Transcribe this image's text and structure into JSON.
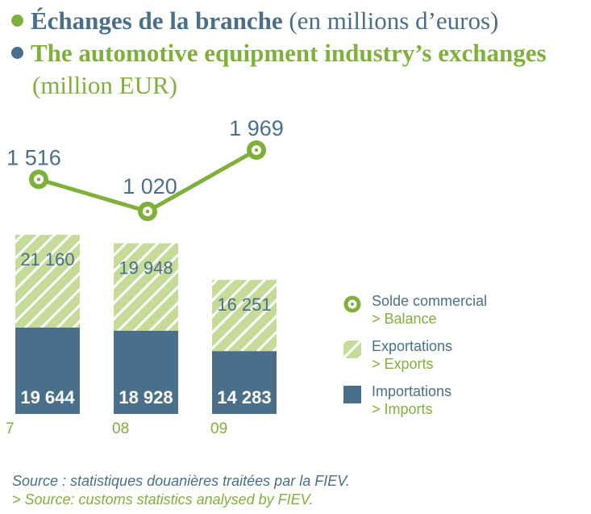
{
  "title": {
    "fr_bold": "Échanges de la branche",
    "fr_light": "(en millions d’euros)",
    "en_bold": "The automotive equipment industry’s exchanges",
    "en_light": "(million EUR)"
  },
  "legend": {
    "balance": {
      "fr": "Solde commercial",
      "en": "> Balance"
    },
    "exports": {
      "fr": "Exportations",
      "en": "> Exports"
    },
    "imports": {
      "fr": "Importations",
      "en": "> Imports"
    }
  },
  "source": {
    "fr": "Source : statistiques douanières traitées par la FIEV.",
    "en": "> Source: customs statistics analysed by FIEV."
  },
  "colors": {
    "blue": "#4a6f8a",
    "green": "#7fb03a",
    "light_green": "#c5dc98"
  },
  "chart_data": {
    "type": "bar",
    "categories": [
      "7",
      "08",
      "09"
    ],
    "series": [
      {
        "name": "Importations",
        "values": [
          19644,
          18928,
          14283
        ],
        "labels": [
          "19 644",
          "18 928",
          "14 283"
        ]
      },
      {
        "name": "Exportations",
        "values": [
          21160,
          19948,
          16251
        ],
        "labels": [
          "21 160",
          "19 948",
          "16 251"
        ]
      }
    ],
    "line": {
      "name": "Solde commercial",
      "values": [
        1516,
        1020,
        1969
      ],
      "labels": [
        "1 516",
        "1 020",
        "1 969"
      ]
    },
    "stacked": true,
    "grid": false,
    "legend_position": "right"
  }
}
